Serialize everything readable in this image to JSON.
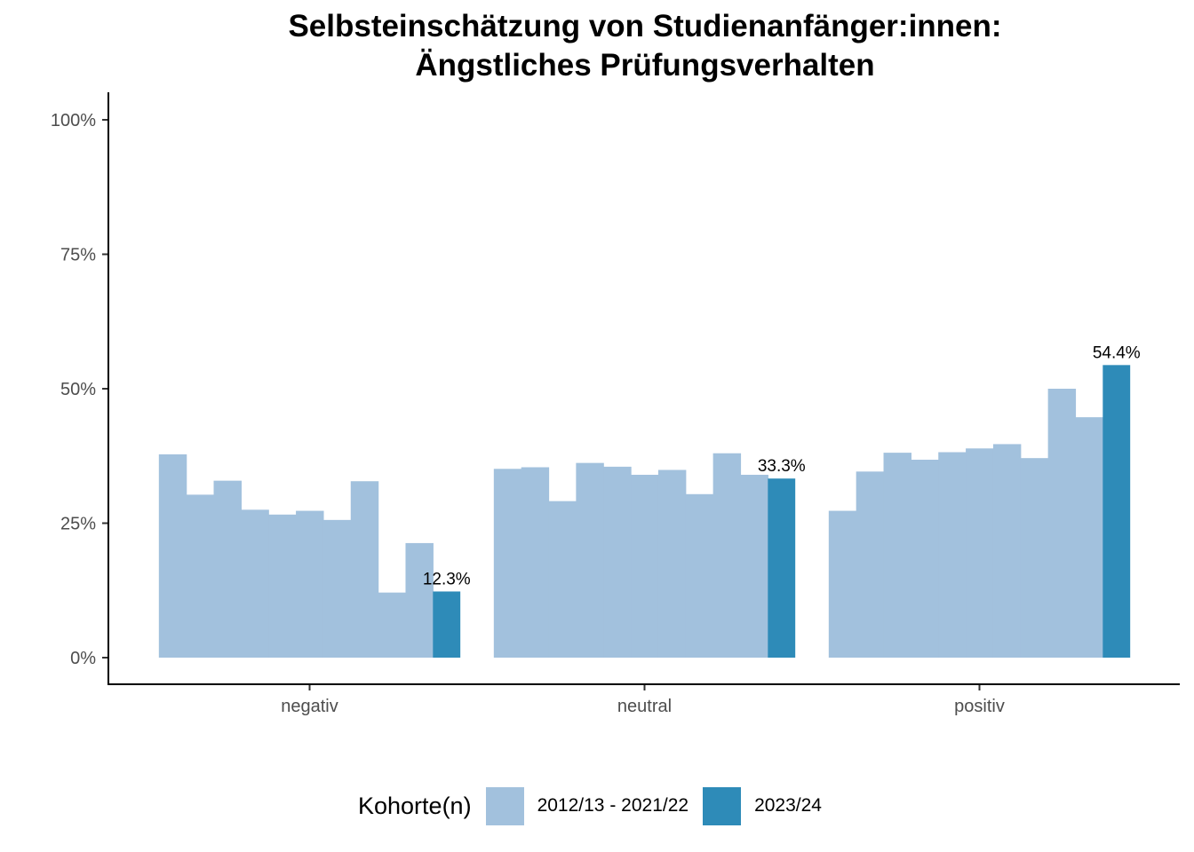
{
  "chart_data": {
    "type": "bar",
    "title": "Selbsteinschätzung von Studienanfänger:innen:",
    "subtitle": "Ängstliches Prüfungsverhalten",
    "xlabel": "",
    "ylabel": "",
    "categories": [
      "negativ",
      "neutral",
      "positiv"
    ],
    "ylim": [
      0,
      1
    ],
    "yticks": [
      "0%",
      "25%",
      "50%",
      "75%",
      "100%"
    ],
    "ytick_values": [
      0,
      0.25,
      0.5,
      0.75,
      1
    ],
    "grid": false,
    "legend_position": "bottom",
    "legend_title": "Kohorte(n)",
    "series": [
      {
        "name": "2012/13 - 2021/22",
        "color": "#a2c1dd",
        "values": [
          [
            0.378,
            0.303,
            0.329,
            0.275,
            0.266,
            0.273,
            0.256,
            0.328,
            0.121,
            0.213
          ],
          [
            0.351,
            0.354,
            0.291,
            0.362,
            0.355,
            0.34,
            0.349,
            0.304,
            0.38,
            0.34
          ],
          [
            0.273,
            0.346,
            0.381,
            0.368,
            0.382,
            0.389,
            0.397,
            0.371,
            0.5,
            0.447
          ]
        ]
      },
      {
        "name": "2023/24",
        "color": "#2e8bb8",
        "values": [
          0.123,
          0.333,
          0.544
        ],
        "labels": [
          "12.3%",
          "33.3%",
          "54.4%"
        ]
      }
    ]
  }
}
